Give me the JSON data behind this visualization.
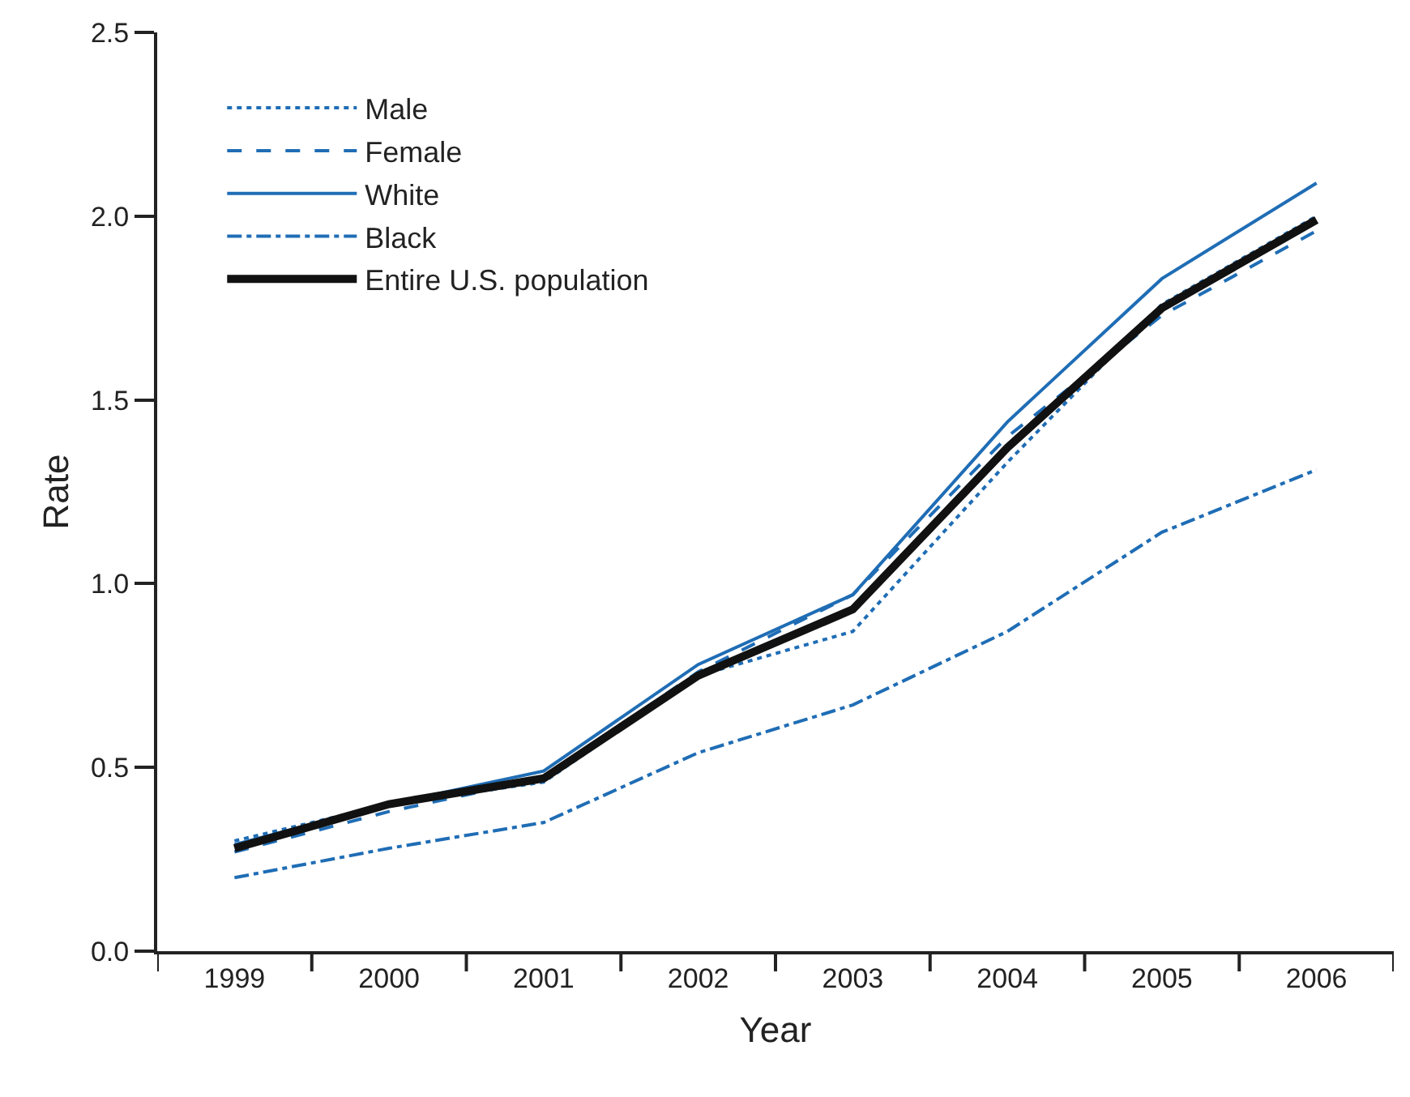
{
  "chart_data": {
    "type": "line",
    "xlabel": "Year",
    "ylabel": "Rate",
    "categories": [
      "1999",
      "2000",
      "2001",
      "2002",
      "2003",
      "2004",
      "2005",
      "2006"
    ],
    "series": [
      {
        "name": "Male",
        "color": "#1f6db5",
        "line_style": "dotted",
        "values": [
          0.3,
          0.4,
          0.46,
          0.75,
          0.87,
          1.33,
          1.76,
          2.0
        ]
      },
      {
        "name": "Female",
        "color": "#1f6db5",
        "line_style": "dashed",
        "values": [
          0.27,
          0.38,
          0.47,
          0.76,
          0.97,
          1.4,
          1.73,
          1.96
        ]
      },
      {
        "name": "White",
        "color": "#1f6db5",
        "line_style": "solid",
        "values": [
          0.29,
          0.4,
          0.49,
          0.78,
          0.97,
          1.44,
          1.83,
          2.09
        ]
      },
      {
        "name": "Black",
        "color": "#1f6db5",
        "line_style": "dashdot",
        "values": [
          0.2,
          0.28,
          0.35,
          0.54,
          0.67,
          0.87,
          1.14,
          1.31
        ]
      },
      {
        "name": "Entire U.S. population",
        "color": "#111111",
        "line_style": "solid",
        "values": [
          0.28,
          0.4,
          0.47,
          0.75,
          0.93,
          1.37,
          1.75,
          1.99
        ]
      }
    ],
    "ylim": [
      0,
      2.5
    ],
    "yticks": [
      {
        "value": 0,
        "label": "0.0"
      },
      {
        "value": 0.5,
        "label": "0.5"
      },
      {
        "value": 1,
        "label": "1.0"
      },
      {
        "value": 1.5,
        "label": "1.5"
      },
      {
        "value": 2,
        "label": "2.0"
      },
      {
        "value": 2.5,
        "label": "2.5"
      }
    ],
    "grid": false,
    "legend": "top left",
    "marker": "none"
  }
}
